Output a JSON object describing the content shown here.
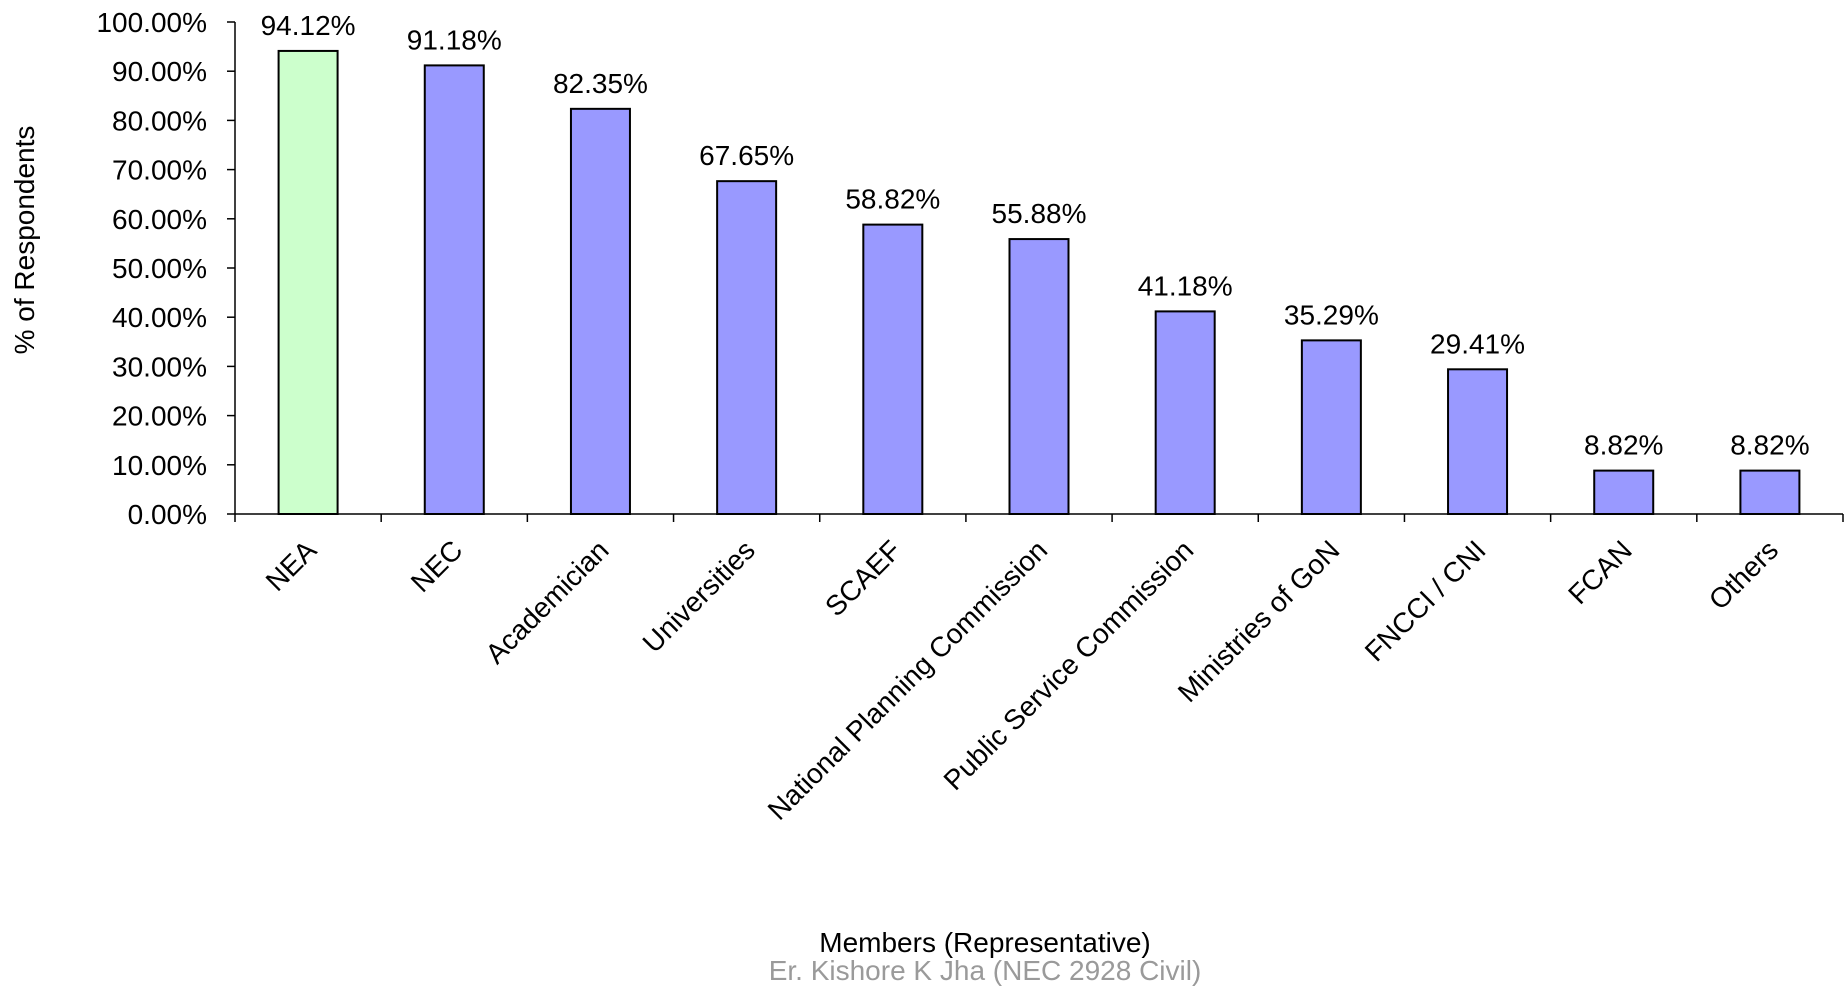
{
  "chart_data": {
    "type": "bar",
    "categories": [
      "NEA",
      "NEC",
      "Academician",
      "Universities",
      "SCAEF",
      "National Planning Commission",
      "Public Service Commission",
      "Ministries of GoN",
      "FNCCI / CNI",
      "FCAN",
      "Others"
    ],
    "values": [
      94.12,
      91.18,
      82.35,
      67.65,
      58.82,
      55.88,
      41.18,
      35.29,
      29.41,
      8.82,
      8.82
    ],
    "data_labels": [
      "94.12%",
      "91.18%",
      "82.35%",
      "67.65%",
      "58.82%",
      "55.88%",
      "41.18%",
      "35.29%",
      "29.41%",
      "8.82%",
      "8.82%"
    ],
    "bar_colors": [
      "#ccffcc",
      "#9999ff",
      "#9999ff",
      "#9999ff",
      "#9999ff",
      "#9999ff",
      "#9999ff",
      "#9999ff",
      "#9999ff",
      "#9999ff",
      "#9999ff"
    ],
    "ylim": [
      0,
      100
    ],
    "y_ticks": [
      0,
      10,
      20,
      30,
      40,
      50,
      60,
      70,
      80,
      90,
      100
    ],
    "y_tick_labels": [
      "0.00%",
      "10.00%",
      "20.00%",
      "30.00%",
      "40.00%",
      "50.00%",
      "60.00%",
      "70.00%",
      "80.00%",
      "90.00%",
      "100.00%"
    ],
    "xlabel": "Members (Representative)",
    "ylabel": "% of Respondents",
    "grid": false,
    "legend": "none"
  },
  "footer": {
    "author": "Er. Kishore K Jha (NEC 2928 Civil)"
  }
}
